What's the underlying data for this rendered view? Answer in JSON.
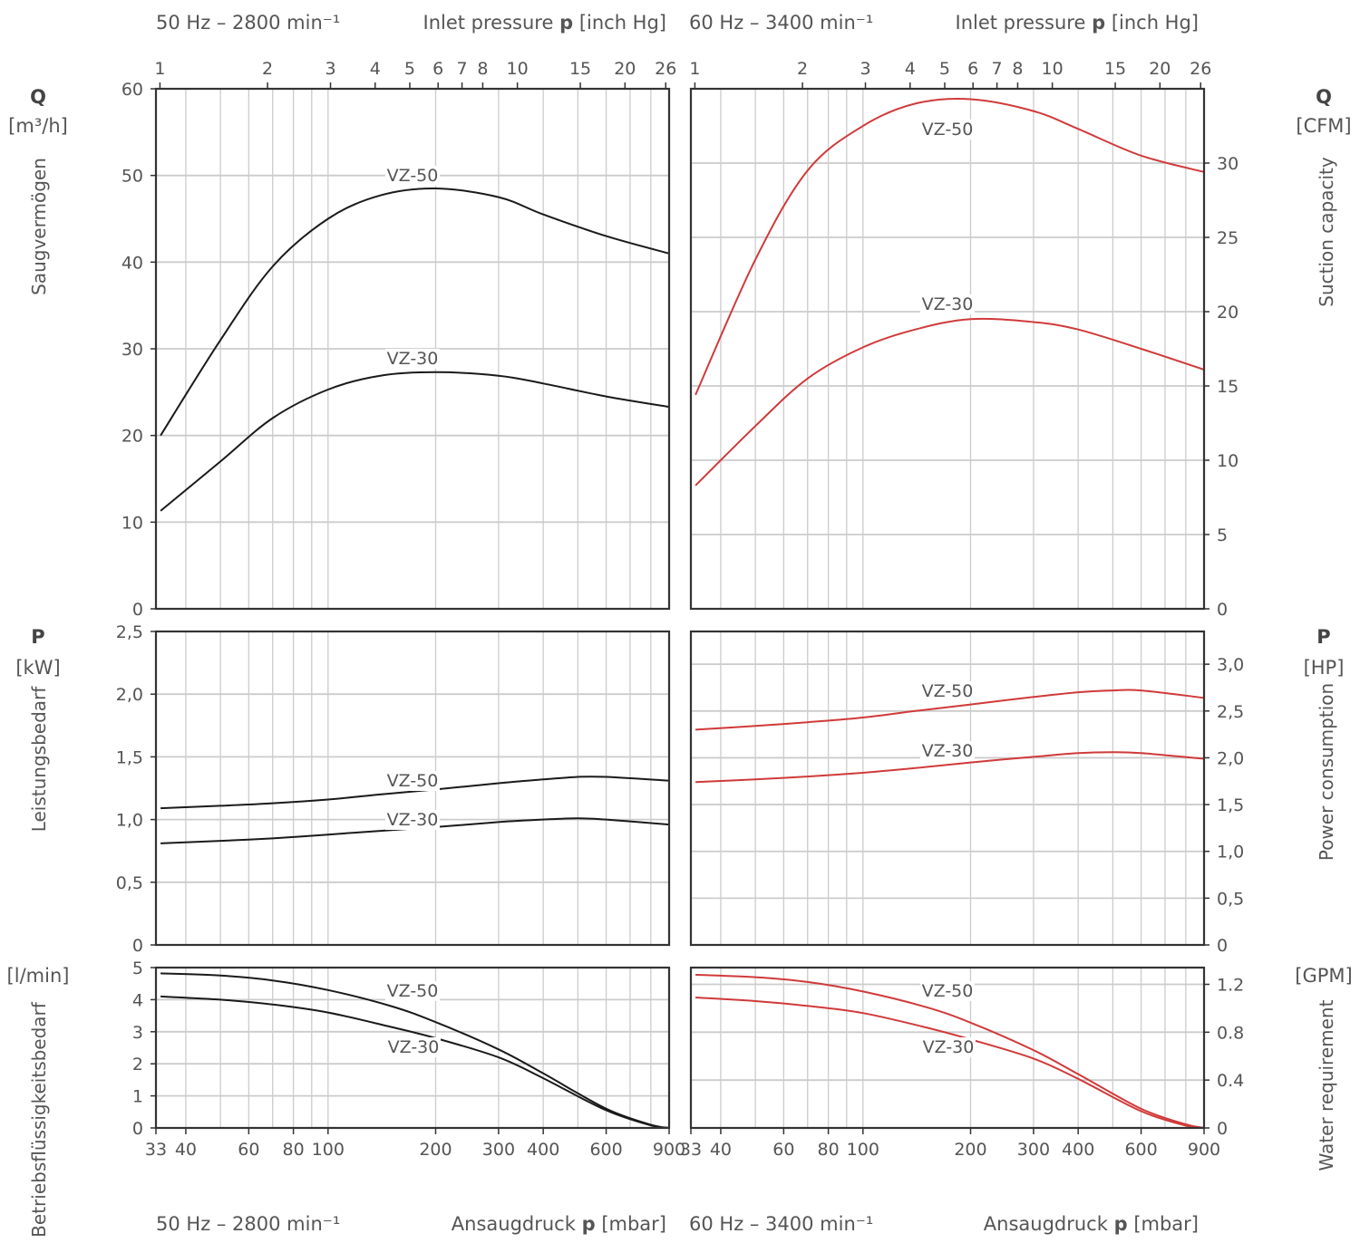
{
  "header": {
    "top_left_freq": "50 Hz – 2800 min⁻¹",
    "top_left_axis": "Inlet pressure",
    "top_left_axis_sym": "p",
    "top_left_axis_unit": "[inch Hg]",
    "top_right_freq": "60 Hz – 3400 min⁻¹",
    "top_right_axis": "Inlet pressure",
    "top_right_axis_sym": "p",
    "top_right_axis_unit": "[inch Hg]",
    "bottom_left_freq": "50 Hz – 2800 min⁻¹",
    "bottom_left_axis": "Ansaugdruck",
    "bottom_left_axis_sym": "p",
    "bottom_left_axis_unit": "[mbar]",
    "bottom_right_freq": "60 Hz – 3400 min⁻¹",
    "bottom_right_axis": "Ansaugdruck",
    "bottom_right_axis_sym": "p",
    "bottom_right_axis_unit": "[mbar]"
  },
  "left_labels": {
    "q_symbol": "Q",
    "q_unit": "[m³/h]",
    "q_name": "Saugvermögen",
    "p_symbol": "P",
    "p_unit": "[kW]",
    "p_name": "Leistungsbedarf",
    "w_unit": "[l/min]",
    "w_name": "Betriebsflüssigkeitsbedarf"
  },
  "right_labels": {
    "q_symbol": "Q",
    "q_unit": "[CFM]",
    "q_name": "Suction capacity",
    "p_symbol": "P",
    "p_unit": "[HP]",
    "p_name": "Power consumption",
    "w_unit": "[GPM]",
    "w_name": "Water requirement"
  },
  "colors": {
    "left_series": "#1a1a1a",
    "right_series": "#d03a3a",
    "frame": "#333333",
    "grid": "#cccccc"
  },
  "axes": {
    "x_mbar_ticks": [
      "33",
      "40",
      "60",
      "80",
      "100",
      "200",
      "300",
      "400",
      "600",
      "900"
    ],
    "x_inhg_ticks": [
      "1",
      "2",
      "3",
      "4",
      "5",
      "6",
      "7",
      "8",
      "10",
      "15",
      "20",
      "26"
    ],
    "x_scale": "log"
  },
  "chart_data": [
    {
      "id": "suction-50hz",
      "type": "line",
      "x_unit": "mbar",
      "x_range": [
        33,
        900
      ],
      "ylim": [
        0,
        60
      ],
      "y_ticks": [
        "0",
        "10",
        "20",
        "30",
        "40",
        "50",
        "60"
      ],
      "series": [
        {
          "name": "VZ-50",
          "x": [
            34,
            50,
            70,
            100,
            140,
            200,
            300,
            400,
            600,
            900
          ],
          "values": [
            20,
            31,
            39.5,
            45,
            47.7,
            48.5,
            47.5,
            45.5,
            43,
            41
          ]
        },
        {
          "name": "VZ-30",
          "x": [
            34,
            50,
            70,
            100,
            140,
            200,
            300,
            400,
            600,
            900
          ],
          "values": [
            11.3,
            17,
            22,
            25.3,
            26.9,
            27.3,
            26.9,
            26,
            24.5,
            23.3
          ]
        }
      ]
    },
    {
      "id": "suction-60hz",
      "type": "line",
      "x_unit": "mbar",
      "x_range": [
        33,
        900
      ],
      "ylim": [
        0,
        35
      ],
      "y_ticks": [
        "0",
        "5",
        "10",
        "15",
        "20",
        "25",
        "30"
      ],
      "series": [
        {
          "name": "VZ-50",
          "x": [
            34,
            50,
            70,
            100,
            140,
            200,
            300,
            400,
            600,
            900
          ],
          "values": [
            14.4,
            23.5,
            29.5,
            32.5,
            34,
            34.3,
            33.5,
            32.3,
            30.5,
            29.4
          ]
        },
        {
          "name": "VZ-30",
          "x": [
            34,
            50,
            70,
            100,
            140,
            200,
            300,
            400,
            600,
            900
          ],
          "values": [
            8.3,
            12.3,
            15.5,
            17.6,
            18.8,
            19.5,
            19.3,
            18.8,
            17.5,
            16.1
          ]
        }
      ]
    },
    {
      "id": "power-50hz",
      "type": "line",
      "x_unit": "mbar",
      "x_range": [
        33,
        900
      ],
      "ylim": [
        0,
        2.5
      ],
      "y_ticks": [
        "0",
        "0,5",
        "1,0",
        "1,5",
        "2,0",
        "2,5"
      ],
      "series": [
        {
          "name": "VZ-50",
          "x": [
            34,
            50,
            70,
            100,
            140,
            200,
            300,
            400,
            500,
            600,
            900
          ],
          "values": [
            1.09,
            1.11,
            1.13,
            1.16,
            1.2,
            1.24,
            1.29,
            1.32,
            1.34,
            1.34,
            1.31
          ]
        },
        {
          "name": "VZ-30",
          "x": [
            34,
            50,
            70,
            100,
            140,
            200,
            300,
            400,
            500,
            600,
            900
          ],
          "values": [
            0.81,
            0.83,
            0.85,
            0.88,
            0.91,
            0.94,
            0.98,
            1.0,
            1.01,
            1.0,
            0.96
          ]
        }
      ]
    },
    {
      "id": "power-60hz",
      "type": "line",
      "x_unit": "mbar",
      "x_range": [
        33,
        900
      ],
      "ylim": [
        0,
        3.35
      ],
      "y_ticks": [
        "0",
        "0,5",
        "1,0",
        "1,5",
        "2,0",
        "2,5",
        "3,0"
      ],
      "series": [
        {
          "name": "VZ-50",
          "x": [
            34,
            50,
            70,
            100,
            140,
            200,
            300,
            400,
            500,
            600,
            900
          ],
          "values": [
            2.3,
            2.34,
            2.38,
            2.43,
            2.5,
            2.57,
            2.65,
            2.7,
            2.72,
            2.72,
            2.64
          ]
        },
        {
          "name": "VZ-30",
          "x": [
            34,
            50,
            70,
            100,
            140,
            200,
            300,
            400,
            500,
            600,
            900
          ],
          "values": [
            1.74,
            1.77,
            1.8,
            1.84,
            1.89,
            1.95,
            2.01,
            2.05,
            2.06,
            2.05,
            1.99
          ]
        }
      ]
    },
    {
      "id": "water-50hz",
      "type": "line",
      "x_unit": "mbar",
      "x_range": [
        33,
        900
      ],
      "ylim": [
        0,
        5
      ],
      "y_ticks": [
        "0",
        "1",
        "2",
        "3",
        "4",
        "5"
      ],
      "series": [
        {
          "name": "VZ-50",
          "x": [
            34,
            50,
            70,
            100,
            150,
            200,
            300,
            400,
            600,
            800,
            900
          ],
          "values": [
            4.82,
            4.75,
            4.6,
            4.3,
            3.8,
            3.3,
            2.45,
            1.7,
            0.6,
            0.1,
            0
          ]
        },
        {
          "name": "VZ-30",
          "x": [
            34,
            50,
            70,
            100,
            150,
            200,
            300,
            400,
            600,
            800,
            900
          ],
          "values": [
            4.1,
            4.0,
            3.85,
            3.6,
            3.15,
            2.8,
            2.2,
            1.55,
            0.55,
            0.08,
            0
          ]
        }
      ]
    },
    {
      "id": "water-60hz",
      "type": "line",
      "x_unit": "mbar",
      "x_range": [
        33,
        900
      ],
      "ylim": [
        0,
        1.34
      ],
      "y_ticks": [
        "0",
        "0.4",
        "0.8",
        "1.2"
      ],
      "series": [
        {
          "name": "VZ-50",
          "x": [
            34,
            50,
            70,
            100,
            150,
            200,
            300,
            400,
            600,
            800,
            900
          ],
          "values": [
            1.28,
            1.26,
            1.22,
            1.14,
            1.01,
            0.88,
            0.65,
            0.45,
            0.16,
            0.03,
            0
          ]
        },
        {
          "name": "VZ-30",
          "x": [
            34,
            50,
            70,
            100,
            150,
            200,
            300,
            400,
            600,
            800,
            900
          ],
          "values": [
            1.09,
            1.06,
            1.02,
            0.96,
            0.84,
            0.74,
            0.58,
            0.41,
            0.14,
            0.02,
            0
          ]
        }
      ]
    }
  ]
}
